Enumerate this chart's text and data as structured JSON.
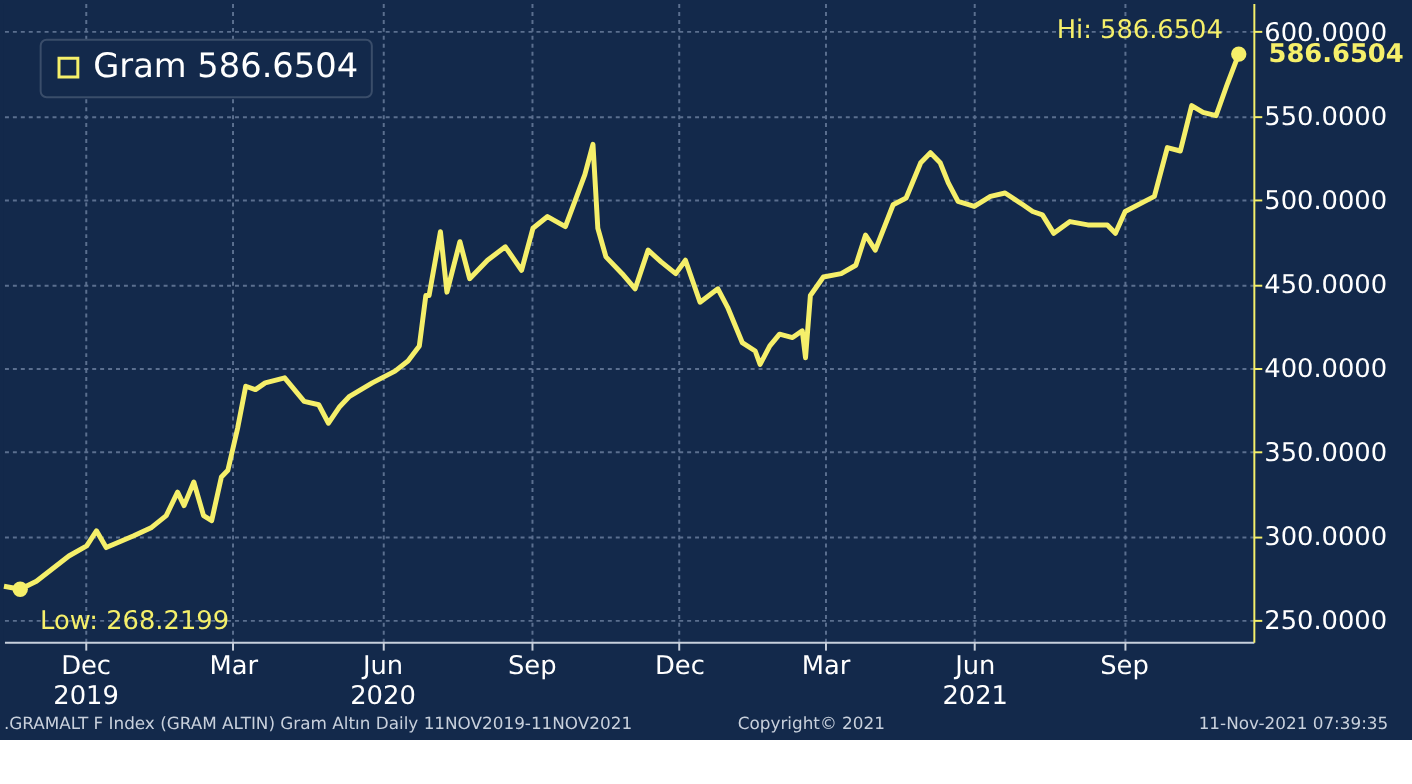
{
  "chart_data": {
    "type": "line",
    "x": [
      "2019-10-12",
      "2019-10-22",
      "2019-11-01",
      "2019-11-21",
      "2019-12-02",
      "2019-12-08",
      "2019-12-14",
      "2019-12-31",
      "2020-01-11",
      "2020-01-20",
      "2020-01-27",
      "2020-01-31",
      "2020-02-06",
      "2020-02-12",
      "2020-02-17",
      "2020-02-23",
      "2020-02-27",
      "2020-03-04",
      "2020-03-09",
      "2020-03-15",
      "2020-03-21",
      "2020-04-02",
      "2020-04-14",
      "2020-04-23",
      "2020-04-29",
      "2020-05-06",
      "2020-05-12",
      "2020-05-26",
      "2020-06-09",
      "2020-06-17",
      "2020-06-24",
      "2020-06-28",
      "2020-06-30",
      "2020-07-07",
      "2020-07-11",
      "2020-07-19",
      "2020-07-25",
      "2020-08-05",
      "2020-08-16",
      "2020-08-26",
      "2020-09-02",
      "2020-09-11",
      "2020-09-22",
      "2020-09-29",
      "2020-10-04",
      "2020-10-09",
      "2020-10-12",
      "2020-10-17",
      "2020-10-27",
      "2020-11-04",
      "2020-11-12",
      "2020-11-20",
      "2020-11-29",
      "2020-12-05",
      "2020-12-14",
      "2020-12-25",
      "2020-12-31",
      "2021-01-09",
      "2021-01-17",
      "2021-01-20",
      "2021-01-26",
      "2021-02-01",
      "2021-02-09",
      "2021-02-15",
      "2021-02-17",
      "2021-02-20",
      "2021-02-28",
      "2021-03-11",
      "2021-03-20",
      "2021-03-26",
      "2021-04-01",
      "2021-04-12",
      "2021-04-20",
      "2021-04-29",
      "2021-05-05",
      "2021-05-11",
      "2021-05-16",
      "2021-05-22",
      "2021-06-01",
      "2021-06-11",
      "2021-06-20",
      "2021-07-01",
      "2021-07-07",
      "2021-07-13",
      "2021-07-20",
      "2021-07-30",
      "2021-08-10",
      "2021-08-22",
      "2021-08-27",
      "2021-09-02",
      "2021-09-20",
      "2021-09-28",
      "2021-10-06",
      "2021-10-13",
      "2021-10-20",
      "2021-10-28",
      "2021-11-04",
      "2021-11-11"
    ],
    "series": [
      {
        "name": "Gram 586.6504",
        "color": "#f5ef6a",
        "values": [
          270,
          268.2199,
          273,
          288,
          294,
          303,
          293,
          300,
          305,
          312,
          326,
          318,
          332,
          312,
          309,
          335,
          339,
          364,
          389,
          387,
          391,
          394,
          380,
          378,
          367,
          377,
          383,
          391,
          398,
          404,
          413,
          443,
          443,
          481,
          445,
          475,
          453,
          464,
          472,
          458,
          483,
          490,
          484,
          502,
          515,
          533,
          483,
          466,
          456,
          447,
          470,
          463,
          456,
          464,
          439,
          447,
          436,
          415,
          410,
          402,
          413,
          420,
          418,
          422,
          406,
          443,
          454,
          456,
          461,
          479,
          470,
          497,
          501,
          522,
          528,
          522,
          510,
          499,
          496,
          502,
          504,
          497,
          493,
          491,
          480,
          487,
          485,
          485,
          480,
          493,
          502,
          531,
          529,
          556,
          552,
          550,
          569,
          586.6504
        ]
      }
    ],
    "xlim": [
      "2019-10-12",
      "2021-11-20"
    ],
    "xticks": [
      {
        "value": "2019-12-01",
        "label": "Dec\n2019"
      },
      {
        "value": "2020-03-01",
        "label": "Mar"
      },
      {
        "value": "2020-06-01",
        "label": "Jun\n2020"
      },
      {
        "value": "2020-09-01",
        "label": "Sep"
      },
      {
        "value": "2020-12-01",
        "label": "Dec"
      },
      {
        "value": "2021-03-01",
        "label": "Mar"
      },
      {
        "value": "2021-06-01",
        "label": "Jun\n2021"
      },
      {
        "value": "2021-09-01",
        "label": "Sep"
      }
    ],
    "ylim": [
      237,
      617
    ],
    "yticks": [
      {
        "value": 250,
        "label": "250.0000"
      },
      {
        "value": 300,
        "label": "300.0000"
      },
      {
        "value": 350,
        "label": "350.0000"
      },
      {
        "value": 400,
        "label": "400.0000"
      },
      {
        "value": 450,
        "label": "450.0000"
      },
      {
        "value": 500,
        "label": "500.0000"
      },
      {
        "value": 550,
        "label": "550.0000"
      },
      {
        "value": 600,
        "label": "600.0000"
      }
    ],
    "grid": true,
    "legend": "top left",
    "marker": "none",
    "line_style": "solid",
    "annotations": [
      {
        "text": "Hi: 586.6504",
        "x": "2021-11-11",
        "y": 586.6504
      },
      {
        "text": "Low: 268.2199",
        "x": "2019-10-22",
        "y": 268.2199
      },
      {
        "text": "586.6504",
        "x": "2021-11-11",
        "y": 586.6504
      },
      ".GRAMALT F Index (GRAM ALTIN) Gram Altın  Daily 11NOV2019-11NOV2021",
      "Copyright© 2021",
      "11-Nov-2021 07:39:35"
    ]
  }
}
